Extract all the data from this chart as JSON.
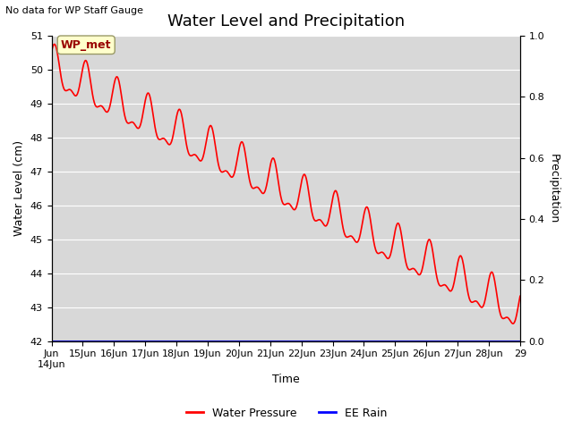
{
  "title": "Water Level and Precipitation",
  "top_left_text": "No data for WP Staff Gauge",
  "xlabel": "Time",
  "ylabel": "Water Level (cm)",
  "ylabel_right": "Precipitation",
  "ylim_left": [
    42.0,
    51.0
  ],
  "ylim_right": [
    0.0,
    1.0
  ],
  "yticks_left": [
    42.0,
    43.0,
    44.0,
    45.0,
    46.0,
    47.0,
    48.0,
    49.0,
    50.0,
    51.0
  ],
  "yticks_right": [
    0.0,
    0.2,
    0.4,
    0.6,
    0.8,
    1.0
  ],
  "xtick_labels": [
    "Jun\n14Jun",
    "15Jun",
    "16Jun",
    "17Jun",
    "18Jun",
    "19Jun",
    "20Jun",
    "21Jun",
    "22Jun",
    "23Jun",
    "24Jun",
    "25Jun",
    "26Jun",
    "27Jun",
    "28Jun",
    "29"
  ],
  "legend_labels": [
    "Water Pressure",
    "EE Rain"
  ],
  "legend_colors": [
    "#ff0000",
    "#0000ff"
  ],
  "wp_met_label": "WP_met",
  "wp_met_bg": "#ffffcc",
  "wp_met_fg": "#990000",
  "background_color": "#e8e8e8",
  "plot_bg_color": "#d8d8d8",
  "line_color_water": "#ff0000",
  "line_color_rain": "#0000cc",
  "title_fontsize": 13,
  "axis_fontsize": 9,
  "tick_fontsize": 8
}
